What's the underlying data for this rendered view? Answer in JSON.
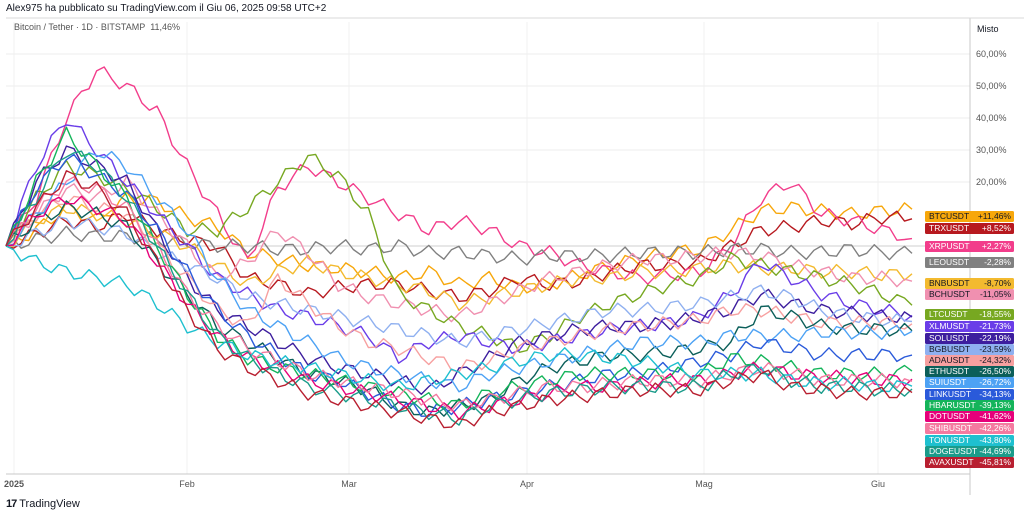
{
  "header": {
    "caption": "Alex975 ha pubblicato su TradingView.com il Giu 06, 2025 09:58 UTC+2",
    "title": "Bitcoin / Tether · 1D · BITSTAMP",
    "title_value": "11,46%",
    "scale_mode": "Misto"
  },
  "footer": {
    "brand": "TradingView"
  },
  "chart_data": {
    "type": "line",
    "x_labels": [
      "2025",
      "Feb",
      "Mar",
      "Apr",
      "Mag",
      "Giu"
    ],
    "y_ticks": [
      "60,00%",
      "50,00%",
      "40,00%",
      "30,00%",
      "20,00%"
    ],
    "y_unit": "%",
    "ylim": [
      -70,
      70
    ],
    "grid": true,
    "legend": "right-axis badges",
    "series": [
      {
        "name": "BTCUSDT",
        "label": "+11,46%",
        "final": 11.46,
        "color": "#f7a70b",
        "text": "#131722",
        "values": [
          0,
          5,
          12,
          8,
          15,
          14,
          9,
          6,
          -2,
          -4,
          -6,
          -7,
          -8,
          -10,
          -8,
          -12,
          -10,
          -13,
          -12,
          -9,
          -6,
          -4,
          -2,
          -1,
          5,
          11,
          12,
          11,
          10,
          11,
          11.5
        ]
      },
      {
        "name": "TRXUSDT",
        "label": "+8,52%",
        "final": 8.52,
        "color": "#b7191f",
        "text": "#ffffff",
        "values": [
          0,
          4,
          8,
          6,
          10,
          5,
          2,
          0,
          -10,
          -12,
          -15,
          -13,
          -12,
          -12,
          -14,
          -16,
          -14,
          -10,
          -12,
          -11,
          -8,
          -6,
          -6,
          -5,
          0,
          5,
          6,
          8,
          7,
          9,
          8.5
        ]
      },
      {
        "name": "XRPUSDT",
        "label": "+2,27%",
        "final": 2.27,
        "color": "#f23d8b",
        "text": "#ffffff",
        "values": [
          0,
          15,
          40,
          55,
          50,
          42,
          25,
          10,
          -5,
          18,
          25,
          20,
          15,
          10,
          5,
          8,
          5,
          0,
          -2,
          -6,
          -8,
          -10,
          -9,
          -8,
          0,
          15,
          20,
          10,
          8,
          5,
          2.3
        ]
      },
      {
        "name": "LEOUSDT",
        "label": "-2,28%",
        "final": -2.28,
        "color": "#808080",
        "text": "#ffffff",
        "values": [
          0,
          2,
          4,
          3,
          3,
          2,
          1,
          0,
          0,
          -1,
          -1,
          0,
          -1,
          0,
          -2,
          -2,
          -3,
          -4,
          -3,
          -3,
          -3,
          -2,
          -2,
          -2,
          -1,
          -1,
          -2,
          -2,
          -1,
          -2,
          -2.3
        ]
      },
      {
        "name": "BNBUSDT",
        "label": "-8,70%",
        "final": -8.7,
        "color": "#f3ba2f",
        "text": "#131722",
        "values": [
          0,
          8,
          12,
          10,
          8,
          4,
          0,
          -6,
          -12,
          -8,
          -5,
          -8,
          -10,
          -12,
          -14,
          -18,
          -16,
          -14,
          -12,
          -10,
          -10,
          -8,
          -8,
          -7,
          -6,
          -7,
          -7,
          -8,
          -8,
          -9,
          -8.7
        ]
      },
      {
        "name": "BCHUSDT",
        "label": "-11,05%",
        "final": -11.05,
        "color": "#f090b0",
        "text": "#131722",
        "values": [
          0,
          10,
          18,
          15,
          20,
          10,
          0,
          -10,
          -5,
          5,
          -2,
          -12,
          -16,
          -18,
          -20,
          -22,
          -18,
          -14,
          -10,
          -8,
          -6,
          -4,
          -4,
          -3,
          -2,
          -3,
          -6,
          -8,
          -10,
          -10,
          -11
        ]
      },
      {
        "name": "LTCUSDT",
        "label": "-18,55%",
        "final": -18.55,
        "color": "#77a821",
        "text": "#ffffff",
        "values": [
          0,
          15,
          25,
          22,
          18,
          12,
          5,
          5,
          12,
          20,
          28,
          22,
          10,
          -15,
          -20,
          -25,
          -28,
          -32,
          -28,
          -22,
          -18,
          -15,
          -12,
          -10,
          -4,
          -6,
          -8,
          -10,
          -12,
          -15,
          -18.5
        ]
      },
      {
        "name": "XLMUSDT",
        "label": "-21,73%",
        "final": -21.73,
        "color": "#6a3de8",
        "text": "#ffffff",
        "values": [
          0,
          25,
          40,
          30,
          20,
          10,
          0,
          -10,
          -15,
          -20,
          -22,
          -25,
          -28,
          -35,
          -30,
          -28,
          -30,
          -32,
          -30,
          -28,
          -26,
          -25,
          -24,
          -22,
          -15,
          -5,
          -10,
          -15,
          -18,
          -20,
          -21.7
        ]
      },
      {
        "name": "SOLUSDT",
        "label": "-22,19%",
        "final": -22.19,
        "color": "#3d1e9e",
        "text": "#ffffff",
        "values": [
          0,
          20,
          30,
          25,
          20,
          5,
          -10,
          -20,
          -25,
          -30,
          -35,
          -38,
          -40,
          -42,
          -45,
          -40,
          -35,
          -30,
          -28,
          -26,
          -25,
          -25,
          -24,
          -22,
          -20,
          -15,
          -18,
          -20,
          -21,
          -22,
          -22.2
        ]
      },
      {
        "name": "BGBUSDT",
        "label": "-23,59%",
        "final": -23.59,
        "color": "#8fb0f0",
        "text": "#131722",
        "values": [
          0,
          4,
          8,
          6,
          4,
          -2,
          -6,
          -10,
          -16,
          -18,
          -20,
          -22,
          -24,
          -26,
          -28,
          -30,
          -28,
          -26,
          -24,
          -22,
          -20,
          -20,
          -19,
          -18,
          -16,
          -14,
          -16,
          -20,
          -22,
          -23,
          -23.6
        ]
      },
      {
        "name": "ADAUSDT",
        "label": "-24,32%",
        "final": -24.32,
        "color": "#f7a0a0",
        "text": "#131722",
        "values": [
          0,
          10,
          15,
          12,
          10,
          0,
          -10,
          -20,
          -25,
          -10,
          -18,
          -25,
          -30,
          -32,
          -35,
          -38,
          -36,
          -32,
          -30,
          -28,
          -26,
          -25,
          -24,
          -23,
          -20,
          -20,
          -22,
          -24,
          -24,
          -24,
          -24.3
        ]
      },
      {
        "name": "ETHUSDT",
        "label": "-26,50%",
        "final": -26.5,
        "color": "#0b5f5a",
        "text": "#ffffff",
        "values": [
          0,
          8,
          12,
          10,
          6,
          -5,
          -15,
          -25,
          -30,
          -35,
          -40,
          -42,
          -45,
          -50,
          -52,
          -50,
          -48,
          -42,
          -38,
          -36,
          -34,
          -34,
          -33,
          -32,
          -30,
          -20,
          -22,
          -25,
          -26,
          -26,
          -26.5
        ]
      },
      {
        "name": "SUIUSDT",
        "label": "-26,72%",
        "final": -26.72,
        "color": "#4da2f4",
        "text": "#ffffff",
        "values": [
          0,
          10,
          20,
          30,
          25,
          15,
          5,
          -10,
          -20,
          -25,
          -30,
          -35,
          -38,
          -40,
          -42,
          -44,
          -40,
          -38,
          -36,
          -34,
          -32,
          -30,
          -30,
          -30,
          -28,
          -28,
          -28,
          -27,
          -27,
          -27,
          -26.7
        ]
      },
      {
        "name": "LINKUSDT",
        "label": "-34,13%",
        "final": -34.13,
        "color": "#2a5ada",
        "text": "#ffffff",
        "values": [
          0,
          18,
          28,
          22,
          16,
          5,
          -8,
          -20,
          -28,
          -34,
          -40,
          -42,
          -46,
          -50,
          -52,
          -50,
          -48,
          -46,
          -44,
          -42,
          -40,
          -40,
          -38,
          -36,
          -34,
          -30,
          -32,
          -34,
          -34,
          -34,
          -34.1
        ]
      },
      {
        "name": "HBARUSDT",
        "label": "-39,13%",
        "final": -39.13,
        "color": "#14b45a",
        "text": "#ffffff",
        "values": [
          0,
          20,
          35,
          25,
          15,
          0,
          -15,
          -28,
          -35,
          -38,
          -40,
          -42,
          -44,
          -46,
          -48,
          -50,
          -46,
          -44,
          -42,
          -40,
          -40,
          -40,
          -40,
          -40,
          -35,
          -36,
          -38,
          -40,
          -40,
          -40,
          -39.1
        ]
      },
      {
        "name": "DOTUSDT",
        "label": "-41,62%",
        "final": -41.62,
        "color": "#e6007a",
        "text": "#ffffff",
        "values": [
          0,
          10,
          15,
          12,
          8,
          -5,
          -18,
          -28,
          -35,
          -38,
          -42,
          -44,
          -46,
          -48,
          -50,
          -52,
          -50,
          -48,
          -46,
          -44,
          -44,
          -43,
          -42,
          -42,
          -40,
          -38,
          -40,
          -41,
          -41,
          -42,
          -41.6
        ]
      },
      {
        "name": "SHIBUSDT",
        "label": "-42,26%",
        "final": -42.26,
        "color": "#f47aa0",
        "text": "#ffffff",
        "values": [
          0,
          12,
          20,
          18,
          12,
          0,
          -15,
          -25,
          -32,
          -36,
          -40,
          -42,
          -44,
          -46,
          -48,
          -50,
          -48,
          -46,
          -44,
          -44,
          -43,
          -42,
          -42,
          -42,
          -40,
          -38,
          -40,
          -42,
          -42,
          -42,
          -42.3
        ]
      },
      {
        "name": "TONUSDT",
        "label": "-43,80%",
        "final": -43.8,
        "color": "#1ec0cf",
        "text": "#ffffff",
        "values": [
          0,
          -5,
          -8,
          -10,
          -12,
          -18,
          -25,
          -30,
          -34,
          -36,
          -38,
          -40,
          -42,
          -44,
          -42,
          -40,
          -38,
          -36,
          -34,
          -34,
          -35,
          -36,
          -38,
          -40,
          -40,
          -40,
          -42,
          -43,
          -43,
          -44,
          -43.8
        ]
      },
      {
        "name": "DOGEUSDT",
        "label": "-44,69%",
        "final": -44.69,
        "color": "#1a9b8a",
        "text": "#ffffff",
        "values": [
          0,
          15,
          30,
          25,
          15,
          0,
          -15,
          -28,
          -35,
          -40,
          -44,
          -46,
          -48,
          -50,
          -52,
          -54,
          -50,
          -48,
          -46,
          -45,
          -44,
          -44,
          -44,
          -44,
          -40,
          -38,
          -42,
          -44,
          -44,
          -45,
          -44.7
        ]
      },
      {
        "name": "AVAXUSDT",
        "label": "-45,81%",
        "final": -45.81,
        "color": "#b81f30",
        "text": "#ffffff",
        "values": [
          0,
          12,
          22,
          18,
          10,
          -5,
          -20,
          -32,
          -38,
          -42,
          -46,
          -48,
          -50,
          -52,
          -54,
          -56,
          -52,
          -50,
          -48,
          -47,
          -46,
          -45,
          -45,
          -45,
          -42,
          -40,
          -44,
          -45,
          -46,
          -46,
          -45.8
        ]
      }
    ]
  }
}
